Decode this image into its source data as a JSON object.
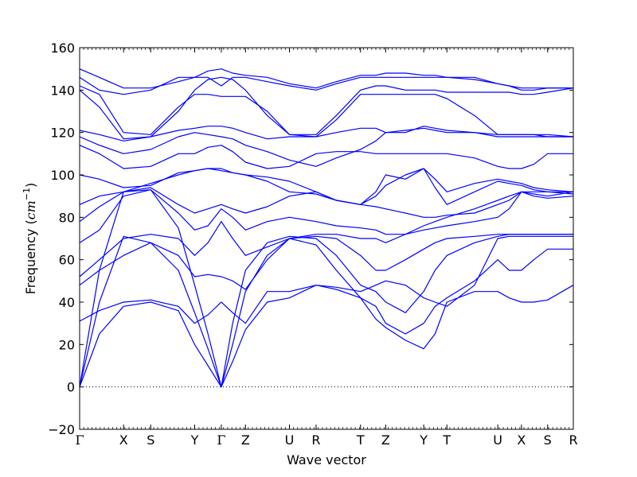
{
  "chart_data": {
    "type": "line",
    "title": "",
    "xlabel": "Wave vector",
    "ylabel": "Frequency (cm⁻¹)",
    "ylabel_main": "Frequency (",
    "ylabel_unit": "cm",
    "ylabel_exp": "−1",
    "ylabel_close": ")",
    "ylim": [
      -20,
      160
    ],
    "yticks": [
      -20,
      0,
      20,
      40,
      60,
      80,
      100,
      120,
      140,
      160
    ],
    "ytick_labels": [
      "−20",
      "0",
      "20",
      "40",
      "60",
      "80",
      "100",
      "120",
      "140",
      "160"
    ],
    "xlim": [
      0,
      1
    ],
    "high_symmetry_points": [
      {
        "label": "Γ",
        "x": 0.0
      },
      {
        "label": "X",
        "x": 0.089
      },
      {
        "label": "S",
        "x": 0.144
      },
      {
        "label": "Y",
        "x": 0.233
      },
      {
        "label": "Γ",
        "x": 0.287
      },
      {
        "label": "Z",
        "x": 0.336
      },
      {
        "label": "U",
        "x": 0.425
      },
      {
        "label": "R",
        "x": 0.479
      },
      {
        "label": "T",
        "x": 0.569
      },
      {
        "label": "Z",
        "x": 0.62
      },
      {
        "label": "Y",
        "x": 0.697
      },
      {
        "label": "T",
        "x": 0.744
      },
      {
        "label": "U",
        "x": 0.847
      },
      {
        "label": "X",
        "x": 0.895
      },
      {
        "label": "S",
        "x": 0.948
      },
      {
        "label": "R",
        "x": 1.0
      }
    ],
    "zero_line": 0,
    "line_color": "#0000ff",
    "series": [
      {
        "x": [
          0,
          0.04,
          0.089,
          0.144,
          0.2,
          0.233,
          0.26,
          0.287,
          0.31,
          0.336,
          0.38,
          0.425,
          0.479,
          0.52,
          0.569,
          0.6,
          0.62,
          0.66,
          0.697,
          0.72,
          0.744,
          0.8,
          0.847,
          0.87,
          0.895,
          0.92,
          0.948,
          1.0
        ],
        "y": [
          0,
          25,
          38,
          40,
          36,
          20,
          10,
          0,
          12,
          27,
          40,
          42,
          48,
          46,
          42,
          32,
          28,
          22,
          18,
          25,
          40,
          45,
          45,
          42,
          40,
          40,
          41,
          48
        ]
      },
      {
        "x": [
          0,
          0.04,
          0.089,
          0.144,
          0.2,
          0.233,
          0.26,
          0.287,
          0.31,
          0.336,
          0.38,
          0.425,
          0.479,
          0.52,
          0.569,
          0.6,
          0.62,
          0.66,
          0.697,
          0.72,
          0.744,
          0.8,
          0.847,
          0.87,
          0.895,
          0.92,
          0.948,
          1.0
        ],
        "y": [
          0,
          40,
          71,
          68,
          55,
          35,
          18,
          0,
          20,
          45,
          62,
          70,
          67,
          55,
          42,
          38,
          30,
          25,
          30,
          38,
          42,
          50,
          60,
          55,
          55,
          60,
          65,
          65
        ]
      },
      {
        "x": [
          0,
          0.04,
          0.089,
          0.144,
          0.2,
          0.233,
          0.26,
          0.287,
          0.31,
          0.336,
          0.38,
          0.425,
          0.479,
          0.52,
          0.569,
          0.6,
          0.62,
          0.66,
          0.697,
          0.72,
          0.744,
          0.8,
          0.847,
          0.87,
          0.895,
          0.92,
          0.948,
          1.0
        ],
        "y": [
          0,
          55,
          92,
          93,
          75,
          48,
          25,
          0,
          30,
          55,
          68,
          71,
          70,
          62,
          48,
          45,
          40,
          35,
          45,
          55,
          62,
          68,
          71,
          72,
          72,
          72,
          72,
          72
        ]
      },
      {
        "x": [
          0,
          0.04,
          0.089,
          0.144,
          0.2,
          0.233,
          0.26,
          0.287,
          0.31,
          0.336,
          0.38,
          0.425,
          0.479,
          0.52,
          0.569,
          0.6,
          0.62,
          0.66,
          0.697,
          0.72,
          0.744,
          0.8,
          0.847,
          0.87,
          0.895,
          0.92,
          0.948,
          1.0
        ],
        "y": [
          31,
          36,
          40,
          41,
          38,
          30,
          34,
          40,
          35,
          30,
          45,
          45,
          48,
          47,
          45,
          48,
          50,
          48,
          42,
          40,
          38,
          48,
          70,
          71,
          71,
          71,
          71,
          71
        ]
      },
      {
        "x": [
          0,
          0.04,
          0.089,
          0.144,
          0.2,
          0.233,
          0.26,
          0.287,
          0.31,
          0.336,
          0.38,
          0.425,
          0.479,
          0.52,
          0.569,
          0.6,
          0.62,
          0.66,
          0.697,
          0.72,
          0.744,
          0.8,
          0.847,
          0.87,
          0.895,
          0.92,
          0.948,
          1.0
        ],
        "y": [
          48,
          55,
          62,
          68,
          62,
          52,
          53,
          52,
          50,
          46,
          60,
          70,
          71,
          70,
          62,
          55,
          55,
          60,
          65,
          68,
          70,
          71,
          72,
          72,
          72,
          72,
          72,
          72
        ]
      },
      {
        "x": [
          0,
          0.04,
          0.089,
          0.144,
          0.2,
          0.233,
          0.26,
          0.287,
          0.31,
          0.336,
          0.38,
          0.425,
          0.479,
          0.52,
          0.569,
          0.6,
          0.62,
          0.66,
          0.697,
          0.72,
          0.744,
          0.8,
          0.847,
          0.87,
          0.895,
          0.92,
          0.948,
          1.0
        ],
        "y": [
          52,
          60,
          70,
          72,
          70,
          62,
          68,
          78,
          70,
          62,
          66,
          70,
          72,
          72,
          70,
          70,
          68,
          72,
          76,
          78,
          80,
          84,
          88,
          90,
          92,
          90,
          89,
          90
        ]
      },
      {
        "x": [
          0,
          0.04,
          0.089,
          0.144,
          0.2,
          0.233,
          0.26,
          0.287,
          0.31,
          0.336,
          0.38,
          0.425,
          0.479,
          0.52,
          0.569,
          0.6,
          0.62,
          0.66,
          0.697,
          0.72,
          0.744,
          0.8,
          0.847,
          0.87,
          0.895,
          0.92,
          0.948,
          1.0
        ],
        "y": [
          68,
          74,
          90,
          93,
          82,
          74,
          76,
          84,
          80,
          74,
          78,
          80,
          78,
          76,
          75,
          74,
          72,
          72,
          74,
          75,
          76,
          78,
          80,
          84,
          92,
          91,
          90,
          92
        ]
      },
      {
        "x": [
          0,
          0.04,
          0.089,
          0.144,
          0.2,
          0.233,
          0.26,
          0.287,
          0.31,
          0.336,
          0.38,
          0.425,
          0.479,
          0.52,
          0.569,
          0.6,
          0.62,
          0.66,
          0.697,
          0.72,
          0.744,
          0.8,
          0.847,
          0.87,
          0.895,
          0.92,
          0.948,
          1.0
        ],
        "y": [
          78,
          85,
          92,
          94,
          86,
          82,
          84,
          86,
          84,
          82,
          85,
          90,
          92,
          88,
          86,
          85,
          84,
          82,
          80,
          80,
          81,
          82,
          86,
          88,
          92,
          92,
          92,
          92
        ]
      },
      {
        "x": [
          0,
          0.04,
          0.089,
          0.144,
          0.2,
          0.233,
          0.26,
          0.287,
          0.31,
          0.336,
          0.38,
          0.425,
          0.479,
          0.52,
          0.569,
          0.6,
          0.62,
          0.66,
          0.697,
          0.72,
          0.744,
          0.8,
          0.847,
          0.87,
          0.895,
          0.92,
          0.948,
          1.0
        ],
        "y": [
          86,
          90,
          92,
          96,
          100,
          102,
          103,
          102,
          101,
          100,
          97,
          92,
          91,
          88,
          86,
          92,
          100,
          98,
          103,
          94,
          86,
          92,
          97,
          96,
          95,
          93,
          92,
          91
        ]
      },
      {
        "x": [
          0,
          0.04,
          0.089,
          0.144,
          0.2,
          0.233,
          0.26,
          0.287,
          0.31,
          0.336,
          0.38,
          0.425,
          0.479,
          0.52,
          0.569,
          0.6,
          0.62,
          0.66,
          0.697,
          0.72,
          0.744,
          0.8,
          0.847,
          0.87,
          0.895,
          0.92,
          0.948,
          1.0
        ],
        "y": [
          100,
          98,
          94,
          95,
          101,
          102,
          103,
          103,
          101,
          100,
          99,
          97,
          92,
          88,
          86,
          90,
          95,
          100,
          103,
          98,
          92,
          96,
          98,
          97,
          96,
          94,
          93,
          92
        ]
      },
      {
        "x": [
          0,
          0.04,
          0.089,
          0.144,
          0.2,
          0.233,
          0.26,
          0.287,
          0.31,
          0.336,
          0.38,
          0.425,
          0.479,
          0.52,
          0.569,
          0.6,
          0.62,
          0.66,
          0.697,
          0.72,
          0.744,
          0.8,
          0.847,
          0.87,
          0.895,
          0.92,
          0.948,
          1.0
        ],
        "y": [
          114,
          110,
          103,
          104,
          110,
          110,
          113,
          114,
          111,
          106,
          103,
          104,
          110,
          111,
          111,
          110,
          110,
          110,
          110,
          110,
          110,
          108,
          104,
          103,
          103,
          105,
          110,
          110
        ]
      },
      {
        "x": [
          0,
          0.04,
          0.089,
          0.144,
          0.2,
          0.233,
          0.26,
          0.287,
          0.31,
          0.336,
          0.38,
          0.425,
          0.479,
          0.52,
          0.569,
          0.6,
          0.62,
          0.66,
          0.697,
          0.72,
          0.744,
          0.8,
          0.847,
          0.87,
          0.895,
          0.92,
          0.948,
          1.0
        ],
        "y": [
          118,
          114,
          110,
          112,
          118,
          120,
          119,
          118,
          117,
          114,
          111,
          107,
          104,
          108,
          112,
          116,
          120,
          121,
          122,
          121,
          120,
          120,
          118,
          118,
          118,
          118,
          118,
          118
        ]
      },
      {
        "x": [
          0,
          0.04,
          0.089,
          0.144,
          0.2,
          0.233,
          0.26,
          0.287,
          0.31,
          0.336,
          0.38,
          0.425,
          0.479,
          0.52,
          0.569,
          0.6,
          0.62,
          0.66,
          0.697,
          0.72,
          0.744,
          0.8,
          0.847,
          0.87,
          0.895,
          0.92,
          0.948,
          1.0
        ],
        "y": [
          121,
          119,
          116,
          118,
          121,
          122,
          123,
          123,
          122,
          120,
          117,
          118,
          118,
          120,
          122,
          122,
          120,
          120,
          123,
          122,
          121,
          120,
          119,
          119,
          119,
          119,
          118,
          118
        ]
      },
      {
        "x": [
          0,
          0.04,
          0.089,
          0.144,
          0.2,
          0.233,
          0.26,
          0.287,
          0.31,
          0.336,
          0.38,
          0.425,
          0.479,
          0.52,
          0.569,
          0.6,
          0.62,
          0.66,
          0.697,
          0.72,
          0.744,
          0.8,
          0.847,
          0.87,
          0.895,
          0.92,
          0.948,
          1.0
        ],
        "y": [
          140,
          132,
          117,
          118,
          130,
          140,
          145,
          146,
          145,
          140,
          128,
          119,
          118,
          126,
          138,
          138,
          138,
          138,
          138,
          138,
          136,
          128,
          119,
          119,
          119,
          119,
          119,
          118
        ]
      },
      {
        "x": [
          0,
          0.04,
          0.089,
          0.144,
          0.2,
          0.233,
          0.26,
          0.287,
          0.31,
          0.336,
          0.38,
          0.425,
          0.479,
          0.52,
          0.569,
          0.6,
          0.62,
          0.66,
          0.697,
          0.72,
          0.744,
          0.8,
          0.847,
          0.87,
          0.895,
          0.92,
          0.948,
          1.0
        ],
        "y": [
          142,
          138,
          120,
          119,
          132,
          138,
          138,
          137,
          137,
          137,
          130,
          119,
          119,
          128,
          140,
          142,
          142,
          140,
          140,
          140,
          139,
          139,
          139,
          139,
          138,
          138,
          139,
          141
        ]
      },
      {
        "x": [
          0,
          0.04,
          0.089,
          0.144,
          0.2,
          0.233,
          0.26,
          0.287,
          0.31,
          0.336,
          0.38,
          0.425,
          0.479,
          0.52,
          0.569,
          0.6,
          0.62,
          0.66,
          0.697,
          0.72,
          0.744,
          0.8,
          0.847,
          0.87,
          0.895,
          0.92,
          0.948,
          1.0
        ],
        "y": [
          146,
          140,
          138,
          140,
          146,
          146,
          146,
          142,
          146,
          146,
          144,
          142,
          140,
          143,
          146,
          146,
          146,
          146,
          146,
          146,
          146,
          146,
          143,
          142,
          140,
          140,
          141,
          141
        ]
      },
      {
        "x": [
          0,
          0.04,
          0.089,
          0.144,
          0.2,
          0.233,
          0.26,
          0.287,
          0.31,
          0.336,
          0.38,
          0.425,
          0.479,
          0.52,
          0.569,
          0.6,
          0.62,
          0.66,
          0.697,
          0.72,
          0.744,
          0.8,
          0.847,
          0.87,
          0.895,
          0.92,
          0.948,
          1.0
        ],
        "y": [
          150,
          146,
          141,
          141,
          144,
          146,
          149,
          150,
          148,
          147,
          146,
          143,
          141,
          144,
          147,
          147,
          148,
          148,
          147,
          147,
          146,
          145,
          143,
          142,
          141,
          141,
          141,
          141
        ]
      }
    ]
  }
}
